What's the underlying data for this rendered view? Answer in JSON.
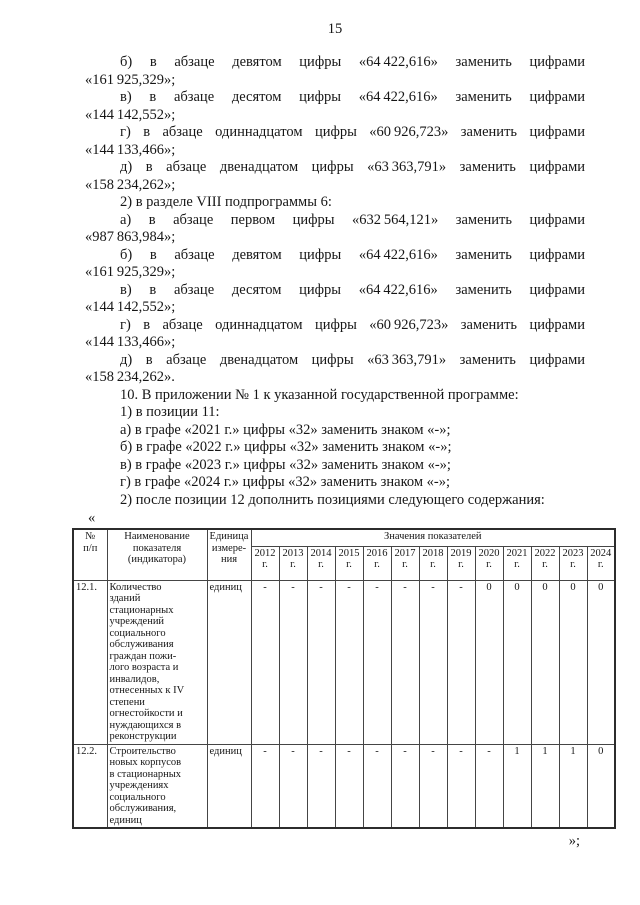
{
  "page": {
    "number": "15"
  },
  "body": {
    "lines": [
      {
        "t": "б) в абзаце девятом цифры «64 422,616» заменить цифрами",
        "indent": true,
        "justify": true
      },
      {
        "t": "«161 925,329»;",
        "indent": false,
        "justify": false
      },
      {
        "t": "в) в абзаце десятом цифры «64 422,616» заменить цифрами",
        "indent": true,
        "justify": true
      },
      {
        "t": "«144 142,552»;",
        "indent": false,
        "justify": false
      },
      {
        "t": "г) в абзаце одиннадцатом цифры «60 926,723» заменить цифрами",
        "indent": true,
        "justify": true
      },
      {
        "t": "«144 133,466»;",
        "indent": false,
        "justify": false
      },
      {
        "t": "д) в абзаце двенадцатом цифры «63 363,791» заменить цифрами",
        "indent": true,
        "justify": true
      },
      {
        "t": "«158 234,262»;",
        "indent": false,
        "justify": false
      },
      {
        "t": "2) в разделе VIII подпрограммы 6:",
        "indent": true,
        "justify": false
      },
      {
        "t": "а) в абзаце первом цифры «632 564,121» заменить цифрами",
        "indent": true,
        "justify": true
      },
      {
        "t": "«987 863,984»;",
        "indent": false,
        "justify": false
      },
      {
        "t": "б) в абзаце девятом цифры «64 422,616» заменить цифрами",
        "indent": true,
        "justify": true
      },
      {
        "t": "«161 925,329»;",
        "indent": false,
        "justify": false
      },
      {
        "t": "в) в абзаце десятом цифры «64 422,616» заменить цифрами",
        "indent": true,
        "justify": true
      },
      {
        "t": "«144 142,552»;",
        "indent": false,
        "justify": false
      },
      {
        "t": "г) в абзаце одиннадцатом цифры «60 926,723» заменить цифрами",
        "indent": true,
        "justify": true
      },
      {
        "t": "«144 133,466»;",
        "indent": false,
        "justify": false
      },
      {
        "t": "д) в абзаце двенадцатом цифры «63 363,791» заменить цифрами",
        "indent": true,
        "justify": true
      },
      {
        "t": "«158 234,262».",
        "indent": false,
        "justify": false
      },
      {
        "t": "10. В приложении № 1 к указанной государственной программе:",
        "indent": true,
        "justify": false
      },
      {
        "t": "1) в позиции 11:",
        "indent": true,
        "justify": false
      },
      {
        "t": "а) в графе «2021 г.» цифры «32» заменить знаком «-»;",
        "indent": true,
        "justify": false
      },
      {
        "t": "б) в графе «2022 г.» цифры «32» заменить знаком «-»;",
        "indent": true,
        "justify": false
      },
      {
        "t": "в) в графе «2023 г.» цифры «32» заменить знаком «-»;",
        "indent": true,
        "justify": false
      },
      {
        "t": "г) в графе «2024 г.» цифры «32» заменить знаком «-»;",
        "indent": true,
        "justify": false
      },
      {
        "t": "2) после позиции 12 дополнить позициями следующего содержания:",
        "indent": true,
        "justify": false
      }
    ]
  },
  "table_block": {
    "open_quote": "«",
    "close_quote": "»;",
    "table": {
      "header": {
        "num": "№\nп/п",
        "name": "Наименование\nпоказателя\n(индикатора)",
        "unit": "Единица\nизмере-\nния",
        "values_title": "Значения показателей",
        "years": [
          "2012",
          "2013",
          "2014",
          "2015",
          "2016",
          "2017",
          "2018",
          "2019",
          "2020",
          "2021",
          "2022",
          "2023",
          "2024"
        ],
        "year_suffix": "г."
      },
      "rows": [
        {
          "num": "12.1.",
          "name": "Количество\nзданий\nстационарных\nучреждений\nсоциального\nобслуживания\nграждан пожи-\nлого возраста и\nинвалидов,\nотнесенных к IV\nстепени\nогнестойкости и\nнуждающихся в\nреконструкции",
          "unit": "единиц",
          "values": [
            "-",
            "-",
            "-",
            "-",
            "-",
            "-",
            "-",
            "-",
            "0",
            "0",
            "0",
            "0",
            "0"
          ]
        },
        {
          "num": "12.2.",
          "name": "Строительство\nновых корпусов\nв стационарных\nучреждениях\nсоциального\nобслуживания,\nединиц",
          "unit": "единиц",
          "values": [
            "-",
            "-",
            "-",
            "-",
            "-",
            "-",
            "-",
            "-",
            "-",
            "1",
            "1",
            "1",
            "0"
          ]
        }
      ]
    }
  }
}
